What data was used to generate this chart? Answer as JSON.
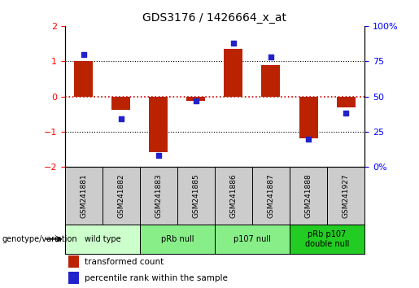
{
  "title": "GDS3176 / 1426664_x_at",
  "samples": [
    "GSM241881",
    "GSM241882",
    "GSM241883",
    "GSM241885",
    "GSM241886",
    "GSM241887",
    "GSM241888",
    "GSM241927"
  ],
  "transformed_count": [
    1.0,
    -0.38,
    -1.57,
    -0.12,
    1.35,
    0.88,
    -1.18,
    -0.32
  ],
  "percentile_rank": [
    80,
    34,
    8,
    47,
    88,
    78,
    20,
    38
  ],
  "ylim_left": [
    -2,
    2
  ],
  "ylim_right": [
    0,
    100
  ],
  "yticks_left": [
    -2,
    -1,
    0,
    1,
    2
  ],
  "yticks_right": [
    0,
    25,
    50,
    75,
    100
  ],
  "ytick_labels_right": [
    "0%",
    "25",
    "50",
    "75",
    "100%"
  ],
  "bar_color": "#bb2200",
  "dot_color": "#2222cc",
  "hline_color": "#cc0000",
  "dotted_lines": [
    -1,
    0,
    1
  ],
  "groups": [
    {
      "label": "wild type",
      "samples_idx": [
        0,
        1
      ],
      "color": "#ccffcc"
    },
    {
      "label": "pRb null",
      "samples_idx": [
        2,
        3
      ],
      "color": "#88ee88"
    },
    {
      "label": "p107 null",
      "samples_idx": [
        4,
        5
      ],
      "color": "#88ee88"
    },
    {
      "label": "pRb p107\ndouble null",
      "samples_idx": [
        6,
        7
      ],
      "color": "#22cc22"
    }
  ],
  "legend_bar_label": "transformed count",
  "legend_dot_label": "percentile rank within the sample",
  "genotype_label": "genotype/variation",
  "bar_width": 0.5
}
